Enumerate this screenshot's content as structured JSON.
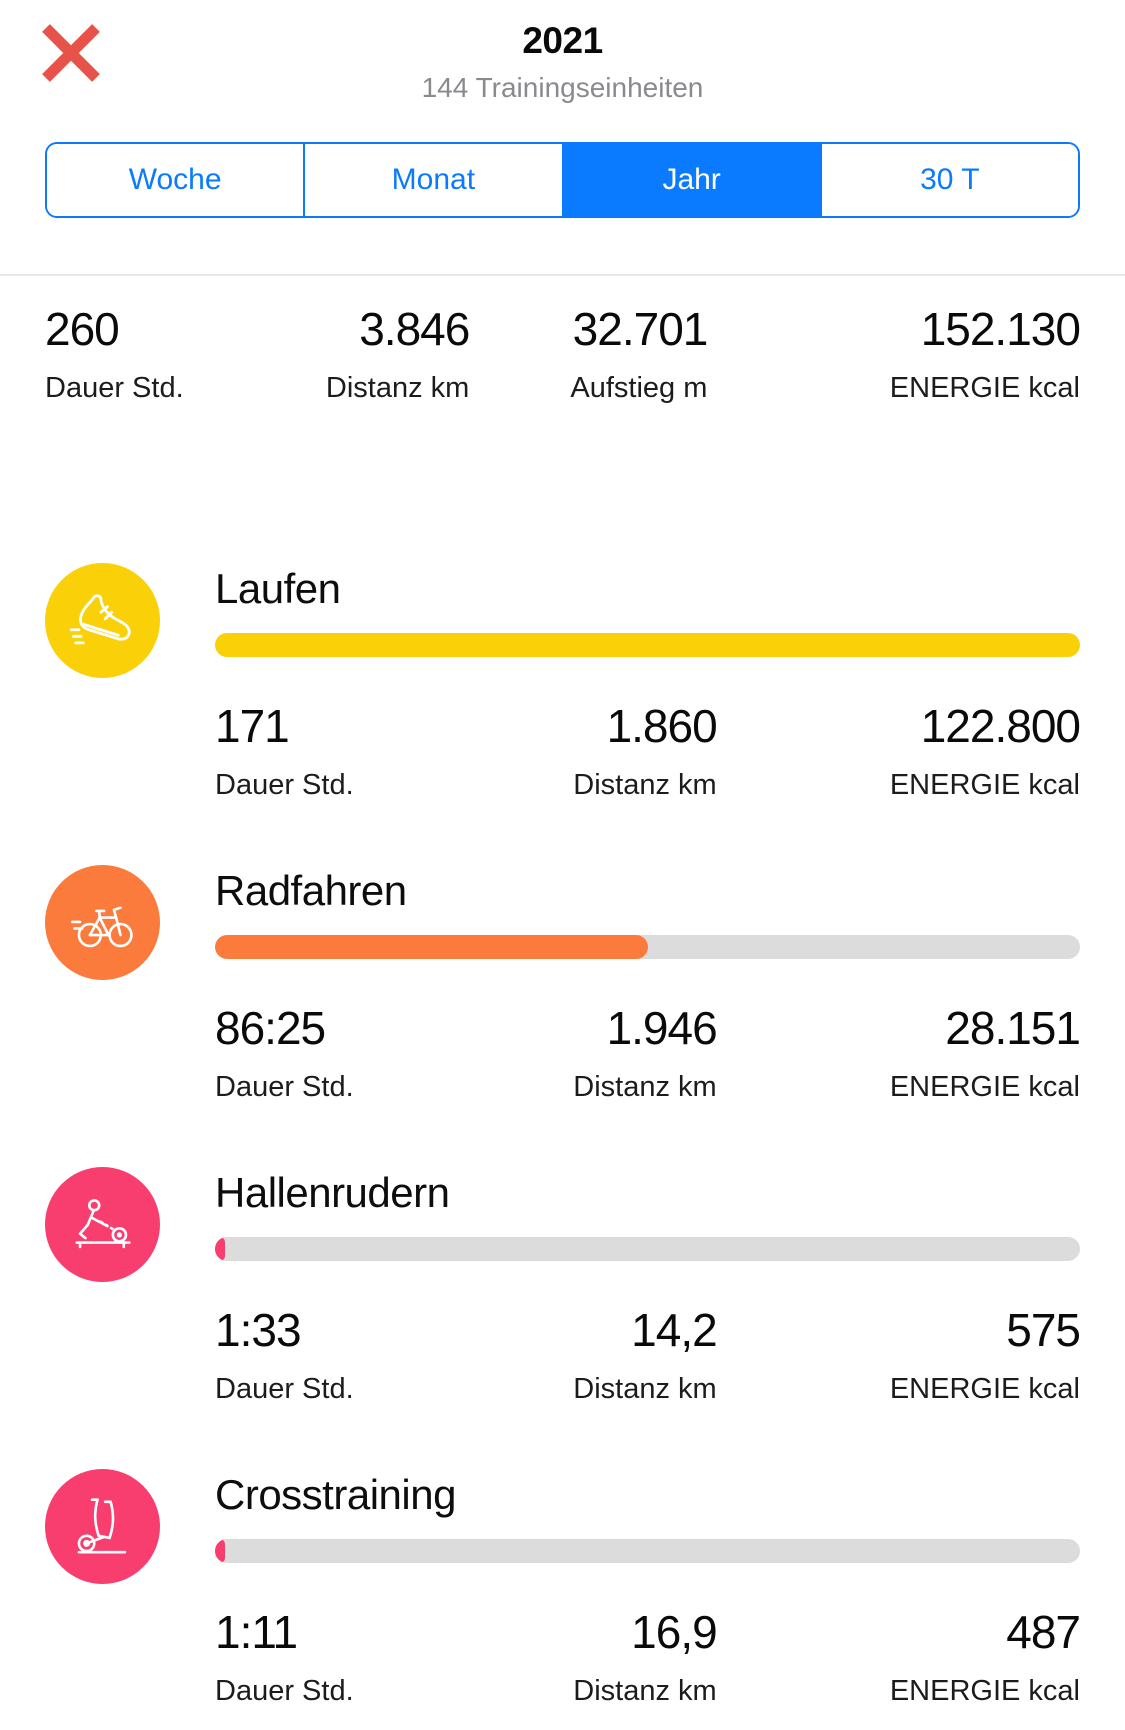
{
  "header": {
    "title": "2021",
    "subtitle": "144 Trainingseinheiten"
  },
  "tabs": {
    "items": [
      {
        "label": "Woche",
        "selected": false
      },
      {
        "label": "Monat",
        "selected": false
      },
      {
        "label": "Jahr",
        "selected": true
      },
      {
        "label": "30 T",
        "selected": false
      }
    ]
  },
  "summary": {
    "stats": [
      {
        "value": "260",
        "label": "Dauer Std."
      },
      {
        "value": "3.846",
        "label": "Distanz km"
      },
      {
        "value": "32.701",
        "label": "Aufstieg m"
      },
      {
        "value": "152.130",
        "label": "ENERGIE kcal"
      }
    ]
  },
  "activities": [
    {
      "name": "Laufen",
      "icon": "running-shoe-icon",
      "color": "#fad008",
      "progress_percent": 100,
      "stats": [
        {
          "value": "171",
          "label": "Dauer Std."
        },
        {
          "value": "1.860",
          "label": "Distanz km"
        },
        {
          "value": "122.800",
          "label": "ENERGIE kcal"
        }
      ]
    },
    {
      "name": "Radfahren",
      "icon": "bicycle-icon",
      "color": "#fa7b3c",
      "progress_percent": 50,
      "stats": [
        {
          "value": "86:25",
          "label": "Dauer Std."
        },
        {
          "value": "1.946",
          "label": "Distanz km"
        },
        {
          "value": "28.151",
          "label": "ENERGIE kcal"
        }
      ]
    },
    {
      "name": "Hallenrudern",
      "icon": "rowing-machine-icon",
      "color": "#f83e6f",
      "progress_percent": 1.2,
      "stats": [
        {
          "value": "1:33",
          "label": "Dauer Std."
        },
        {
          "value": "14,2",
          "label": "Distanz km"
        },
        {
          "value": "575",
          "label": "ENERGIE kcal"
        }
      ]
    },
    {
      "name": "Crosstraining",
      "icon": "elliptical-trainer-icon",
      "color": "#f83e6f",
      "progress_percent": 1.2,
      "stats": [
        {
          "value": "1:11",
          "label": "Dauer Std."
        },
        {
          "value": "16,9",
          "label": "Distanz km"
        },
        {
          "value": "487",
          "label": "ENERGIE kcal"
        }
      ]
    }
  ],
  "colors": {
    "accent_blue": "#0a7bfe",
    "close_red": "#e85349",
    "track_gray": "#dcdcdc",
    "running_yellow": "#fad008",
    "cycling_orange": "#fa7b3c",
    "indoor_pink": "#f83e6f"
  }
}
